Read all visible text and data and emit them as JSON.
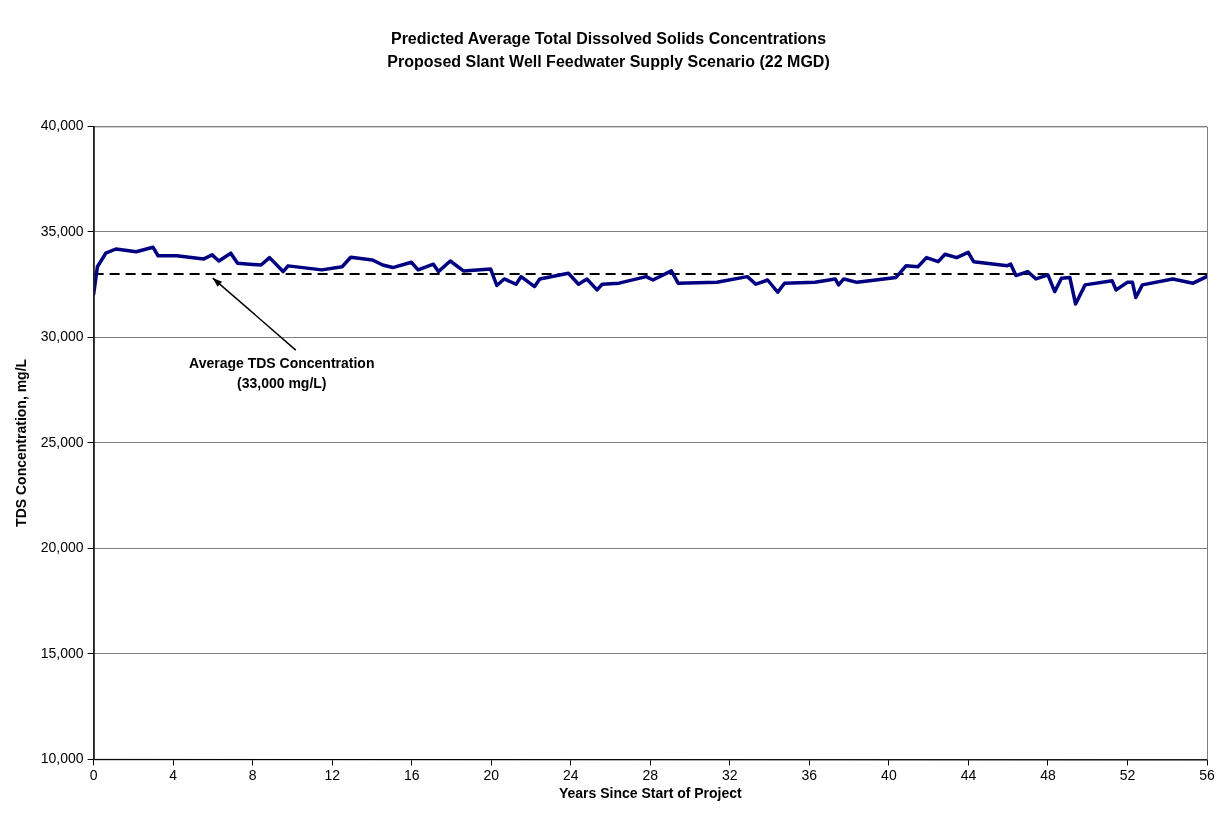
{
  "chart_data": {
    "type": "line",
    "title": "Predicted Average Total Dissolved Solids Concentrations",
    "subtitle": "Proposed Slant Well Feedwater Supply Scenario (22 MGD)",
    "xlabel": "Years Since Start of Project",
    "ylabel": "TDS Concentration, mg/L",
    "xlim": [
      0,
      56
    ],
    "xticks": [
      0,
      4,
      8,
      12,
      16,
      20,
      24,
      28,
      32,
      36,
      40,
      44,
      48,
      52,
      56
    ],
    "ylim": [
      10000,
      40000
    ],
    "yticks": [
      {
        "value": 10000,
        "label": "10,000"
      },
      {
        "value": 15000,
        "label": "15,000"
      },
      {
        "value": 20000,
        "label": "20,000"
      },
      {
        "value": 25000,
        "label": "25,000"
      },
      {
        "value": 30000,
        "label": "30,000"
      },
      {
        "value": 35000,
        "label": "35,000"
      },
      {
        "value": 40000,
        "label": "40,000"
      }
    ],
    "grid": "y",
    "legend": false,
    "marker": "none",
    "line_style": "solid",
    "ref_lines": [
      {
        "axis": "y",
        "value": 33000,
        "label": "Average TDS Concentration\n(33,000 mg/L)",
        "color": "#000000",
        "line_style": "dashed"
      }
    ],
    "series": [
      {
        "color": "#000080",
        "x": [
          0,
          0.19,
          0.61,
          1.12,
          2.14,
          2.99,
          3.24,
          4.18,
          5.54,
          5.96,
          6.3,
          6.9,
          7.24,
          8.42,
          8.85,
          9.53,
          9.78,
          11.48,
          12.5,
          12.93,
          14.03,
          14.54,
          15.05,
          15.98,
          16.32,
          17.09,
          17.34,
          17.94,
          18.6,
          19.97,
          20.28,
          20.65,
          21.25,
          21.5,
          22.18,
          22.44,
          23.88,
          24.39,
          24.81,
          25.32,
          25.58,
          26.43,
          27.79,
          28.13,
          29.06,
          29.4,
          31.35,
          32.88,
          33.31,
          33.9,
          34.41,
          34.75,
          36.28,
          37.3,
          37.47,
          37.73,
          38.4,
          39.34,
          40.36,
          40.87,
          41.46,
          41.89,
          42.48,
          42.82,
          43.41,
          43.99,
          44.26,
          45.96,
          46.13,
          46.39,
          46.98,
          47.4,
          48.0,
          48.34,
          48.68,
          49.1,
          49.39,
          49.87,
          51.23,
          51.43,
          51.99,
          52.25,
          52.42,
          52.75,
          54.28,
          55.3,
          55.98
        ],
        "values": [
          32050,
          33350,
          33990,
          34190,
          34060,
          34270,
          33870,
          33870,
          33720,
          33910,
          33620,
          33990,
          33510,
          33430,
          33780,
          33120,
          33390,
          33200,
          33350,
          33800,
          33670,
          33430,
          33310,
          33560,
          33200,
          33470,
          33120,
          33620,
          33150,
          33240,
          32460,
          32770,
          32520,
          32880,
          32410,
          32770,
          33040,
          32520,
          32770,
          32250,
          32520,
          32570,
          32880,
          32720,
          33150,
          32570,
          32610,
          32880,
          32520,
          32720,
          32140,
          32570,
          32610,
          32770,
          32490,
          32770,
          32610,
          32720,
          32840,
          33400,
          33350,
          33780,
          33590,
          33940,
          33780,
          34030,
          33590,
          33400,
          33470,
          32930,
          33120,
          32770,
          32960,
          32170,
          32800,
          32840,
          31580,
          32490,
          32680,
          32250,
          32610,
          32610,
          31890,
          32490,
          32770,
          32570,
          32880
        ]
      }
    ]
  }
}
